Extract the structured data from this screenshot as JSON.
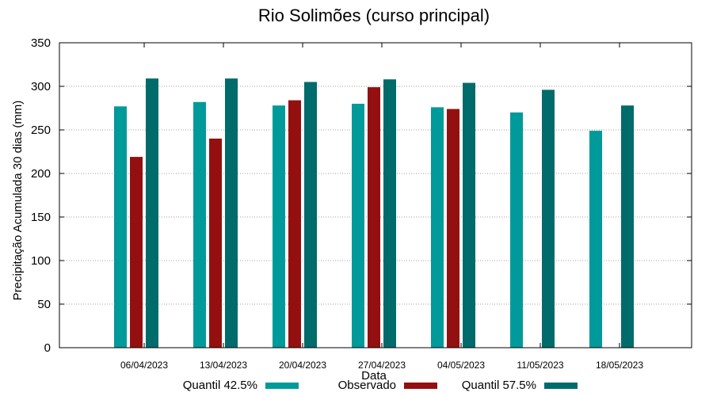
{
  "chart_data": {
    "type": "bar",
    "title": "Rio Solimões (curso principal)",
    "xlabel": "Data",
    "ylabel": "Precipitação Acumulada 30 dias (mm)",
    "ylim": [
      0,
      350
    ],
    "yticks": [
      0,
      50,
      100,
      150,
      200,
      250,
      300,
      350
    ],
    "grid": true,
    "legend_position": "bottom",
    "categories": [
      "06/04/2023",
      "13/04/2023",
      "20/04/2023",
      "27/04/2023",
      "04/05/2023",
      "11/05/2023",
      "18/05/2023"
    ],
    "series": [
      {
        "name": "Quantil 42.5%",
        "color": "#009a9a",
        "values": [
          277,
          282,
          278,
          280,
          276,
          270,
          249
        ]
      },
      {
        "name": "Observado",
        "color": "#941010",
        "values": [
          219,
          240,
          284,
          299,
          274,
          null,
          null
        ]
      },
      {
        "name": "Quantil 57.5%",
        "color": "#006b6b",
        "values": [
          309,
          309,
          305,
          308,
          304,
          296,
          278
        ]
      }
    ]
  }
}
